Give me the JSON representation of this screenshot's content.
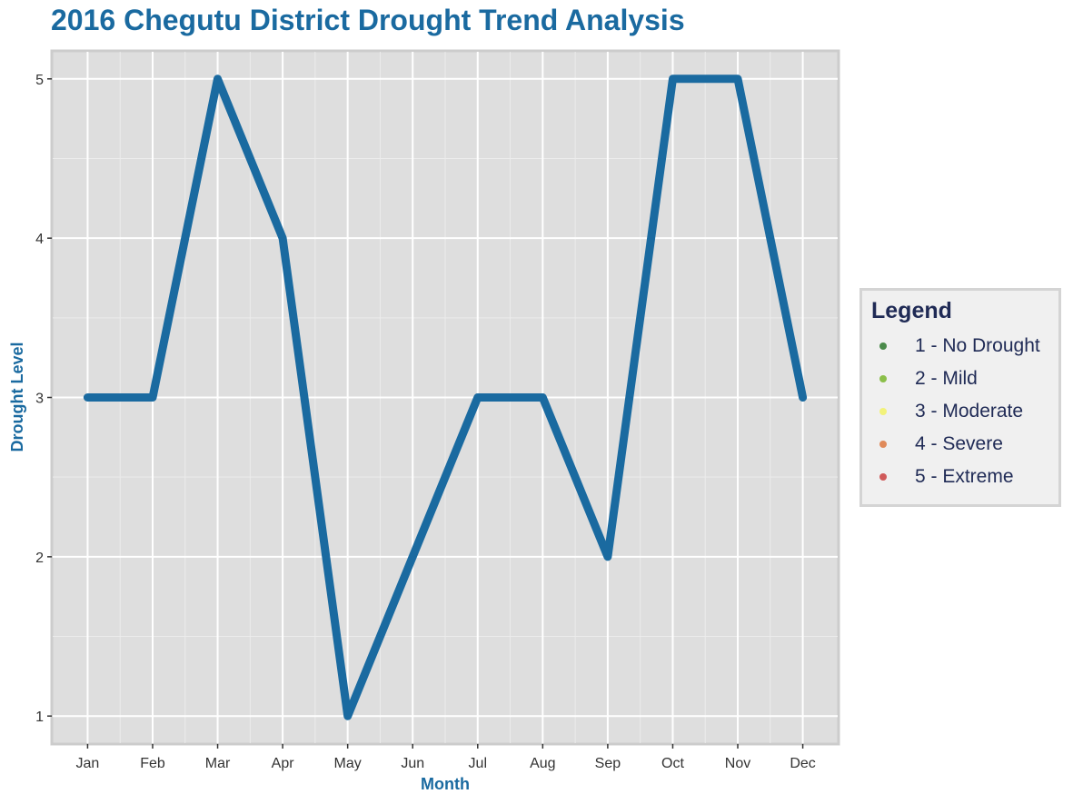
{
  "chart_data": {
    "type": "line",
    "title": "2016 Chegutu District Drought Trend Analysis",
    "xlabel": "Month",
    "ylabel": "Drought Level",
    "categories": [
      "Jan",
      "Feb",
      "Mar",
      "Apr",
      "May",
      "Jun",
      "Jul",
      "Aug",
      "Sep",
      "Oct",
      "Nov",
      "Dec"
    ],
    "series": [
      {
        "values": [
          3,
          3,
          5,
          4,
          1,
          2,
          3,
          3,
          2,
          5,
          5,
          3
        ],
        "color": "#1a6aa0"
      }
    ],
    "yticks": [
      1,
      2,
      3,
      4,
      5
    ],
    "ylim": [
      0.83,
      5.17
    ],
    "grid": true,
    "legend_position": "right",
    "panel_background": "#dedede",
    "legend": {
      "title": "Legend",
      "items": [
        {
          "label": "1 - No Drought",
          "color": "#4a8a4a"
        },
        {
          "label": "2 - Mild",
          "color": "#8bbf4a"
        },
        {
          "label": "3 - Moderate",
          "color": "#f2f27a"
        },
        {
          "label": "4 - Severe",
          "color": "#e08a5a"
        },
        {
          "label": "5 - Extreme",
          "color": "#d05a5a"
        }
      ]
    }
  }
}
